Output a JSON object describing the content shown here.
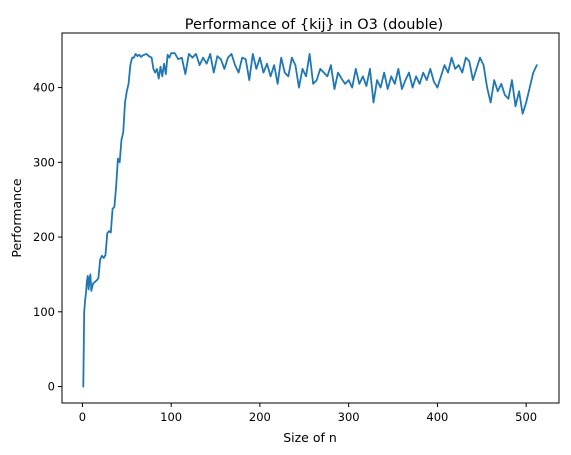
{
  "chart_data": {
    "type": "line",
    "title": "Performance of {kij} in O3 (double)",
    "xlabel": "Size of n",
    "ylabel": "Performance",
    "xlim": [
      -23,
      537
    ],
    "ylim": [
      -22,
      473
    ],
    "xticks": [
      0,
      100,
      200,
      300,
      400,
      500
    ],
    "yticks": [
      0,
      100,
      200,
      300,
      400
    ],
    "grid": false,
    "series": [
      {
        "color": "#1f77b4",
        "x": [
          1,
          2,
          3,
          4,
          5,
          6,
          7,
          8,
          9,
          10,
          12,
          14,
          16,
          18,
          20,
          22,
          24,
          26,
          28,
          30,
          32,
          34,
          36,
          38,
          40,
          42,
          44,
          46,
          48,
          50,
          52,
          54,
          56,
          58,
          60,
          62,
          64,
          66,
          68,
          70,
          72,
          75,
          78,
          80,
          82,
          84,
          86,
          88,
          90,
          92,
          94,
          96,
          98,
          100,
          104,
          108,
          112,
          116,
          120,
          124,
          128,
          132,
          136,
          140,
          144,
          148,
          152,
          156,
          160,
          164,
          168,
          172,
          176,
          180,
          184,
          188,
          192,
          196,
          200,
          204,
          208,
          212,
          216,
          220,
          224,
          228,
          232,
          236,
          240,
          244,
          248,
          252,
          256,
          260,
          264,
          268,
          272,
          276,
          280,
          284,
          288,
          292,
          296,
          300,
          304,
          308,
          312,
          316,
          320,
          324,
          328,
          332,
          336,
          340,
          344,
          348,
          352,
          356,
          360,
          364,
          368,
          372,
          376,
          380,
          384,
          388,
          392,
          396,
          400,
          404,
          408,
          412,
          416,
          420,
          424,
          428,
          432,
          436,
          440,
          444,
          448,
          452,
          456,
          460,
          464,
          468,
          472,
          476,
          480,
          484,
          488,
          492,
          496,
          500,
          504,
          508,
          512
        ],
        "y": [
          0,
          100,
          115,
          125,
          140,
          148,
          130,
          145,
          150,
          128,
          138,
          140,
          142,
          145,
          170,
          175,
          172,
          176,
          205,
          208,
          206,
          238,
          240,
          268,
          305,
          300,
          330,
          340,
          380,
          395,
          405,
          430,
          440,
          440,
          445,
          442,
          444,
          441,
          443,
          444,
          445,
          442,
          440,
          425,
          420,
          425,
          412,
          428,
          415,
          432,
          418,
          444,
          440,
          446,
          446,
          438,
          440,
          418,
          445,
          440,
          445,
          430,
          440,
          432,
          445,
          420,
          442,
          438,
          425,
          440,
          445,
          430,
          420,
          440,
          438,
          410,
          445,
          425,
          440,
          420,
          432,
          415,
          430,
          405,
          440,
          420,
          415,
          440,
          430,
          400,
          425,
          415,
          445,
          405,
          410,
          425,
          420,
          415,
          430,
          398,
          420,
          412,
          405,
          410,
          400,
          425,
          405,
          415,
          402,
          425,
          380,
          410,
          400,
          420,
          398,
          415,
          405,
          425,
          398,
          410,
          420,
          400,
          415,
          405,
          420,
          410,
          425,
          408,
          400,
          415,
          430,
          420,
          440,
          425,
          430,
          420,
          440,
          435,
          410,
          425,
          440,
          430,
          400,
          380,
          410,
          395,
          405,
          390,
          385,
          410,
          375,
          395,
          365,
          380,
          400,
          420,
          430
        ]
      }
    ]
  }
}
